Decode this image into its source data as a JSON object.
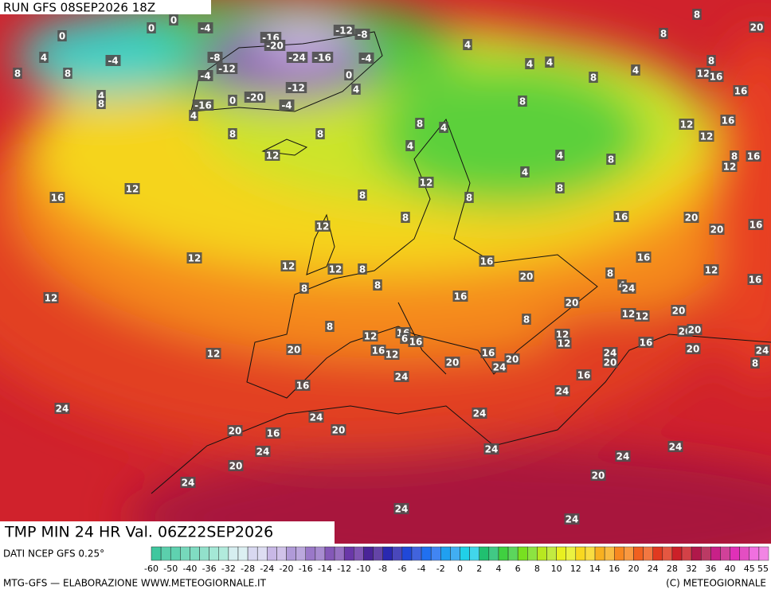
{
  "header": {
    "run": "RUN GFS 08SEP2026 18Z"
  },
  "footer": {
    "title": "TMP MIN 24 HR Val. 06Z22SEP2026",
    "source": "DATI NCEP GFS 0.25°",
    "credit_left": "MTG-GFS — ELABORAZIONE WWW.METEOGIORNALE.IT",
    "credit_right": "(C) METEOGIORNALE"
  },
  "legend": {
    "ticks": [
      -60,
      -50,
      -40,
      -36,
      -32,
      -28,
      -24,
      -20,
      -16,
      -14,
      -12,
      -10,
      -8,
      -6,
      -4,
      -2,
      0,
      2,
      4,
      6,
      8,
      10,
      12,
      14,
      16,
      20,
      24,
      28,
      32,
      36,
      40,
      45,
      55
    ],
    "colors": [
      "#3fc79e",
      "#5fd2b0",
      "#80dcc2",
      "#a4e8d6",
      "#d6eef0",
      "#d8d8f0",
      "#c8b8e6",
      "#b09ad8",
      "#9a78c8",
      "#8458b8",
      "#6a38a8",
      "#4a2498",
      "#2a28b0",
      "#2048d8",
      "#2070f0",
      "#20a0f0",
      "#20d0e8",
      "#20c070",
      "#40d040",
      "#78e020",
      "#b8e820",
      "#e8f020",
      "#f8d820",
      "#f8b020",
      "#f88820",
      "#f06020",
      "#e03a20",
      "#cc2028",
      "#b0184a",
      "#c82088",
      "#e030b8",
      "#f070e0"
    ]
  },
  "map_labels": [
    0,
    0,
    0,
    -4,
    -16,
    -20,
    -12,
    -8,
    4,
    8,
    -4,
    -8,
    -12,
    -4,
    -24,
    -16,
    -4,
    0,
    4,
    -12,
    8,
    4,
    8,
    -16,
    0,
    -20,
    -4,
    4,
    8,
    8,
    12,
    4,
    4,
    4,
    8,
    4,
    8,
    8,
    20,
    8,
    12,
    16,
    16,
    8,
    12,
    16,
    12,
    8,
    4,
    4,
    4,
    8,
    4,
    8,
    8,
    16,
    12,
    12,
    16,
    12,
    8,
    8,
    8,
    12,
    16,
    20,
    20,
    16,
    12,
    12,
    12,
    8,
    16,
    16,
    12,
    20,
    16,
    8,
    8,
    16,
    8,
    4,
    24,
    12,
    20,
    20,
    8,
    12,
    12,
    8,
    12,
    16,
    12,
    12,
    20,
    20,
    6,
    16,
    20,
    16,
    12,
    16,
    20,
    12,
    16,
    20,
    24,
    20,
    24,
    8,
    20,
    24,
    24,
    16,
    16,
    24,
    24,
    24,
    24,
    20,
    20,
    16,
    24,
    24,
    24,
    20,
    24,
    20,
    24,
    24,
    24
  ]
}
